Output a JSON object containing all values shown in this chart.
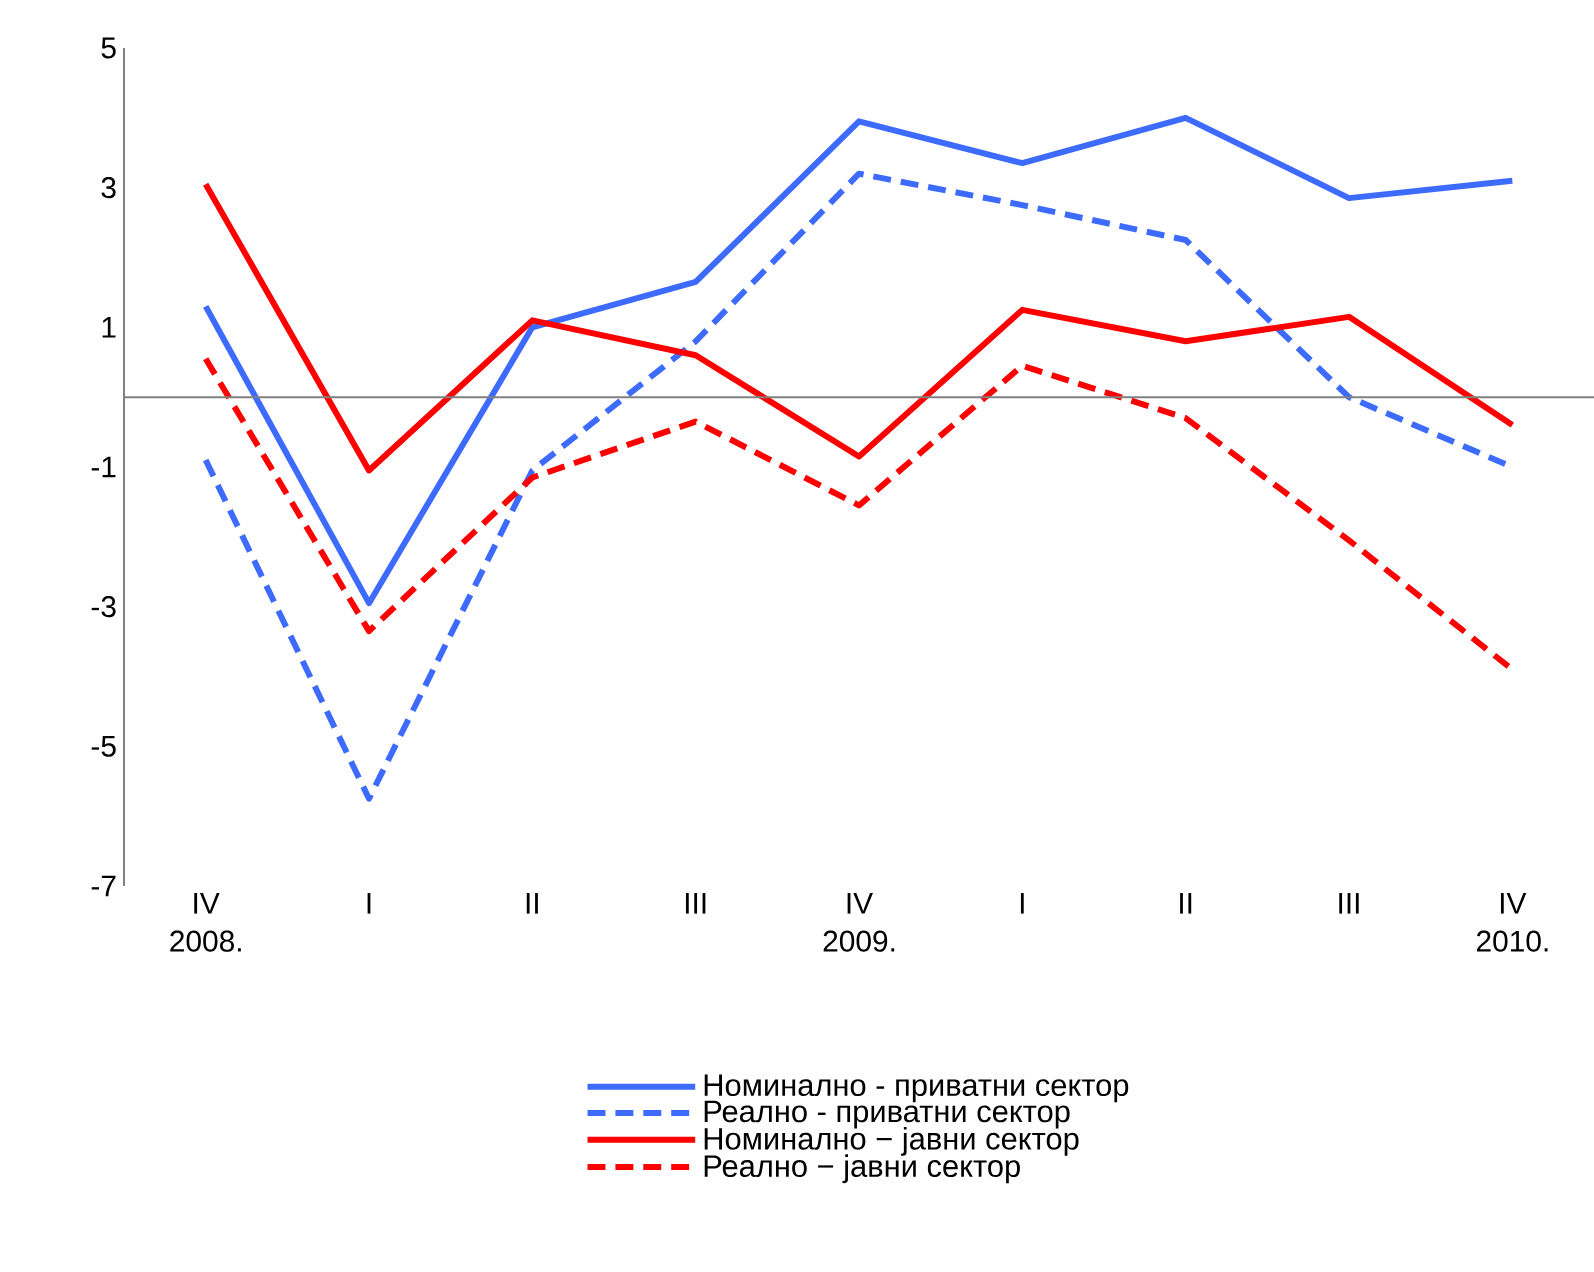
{
  "chart_data": {
    "type": "line",
    "categories": [
      "IV 2008.",
      "I",
      "II",
      "III",
      "IV 2009.",
      "I",
      "II",
      "III",
      "IV 2010."
    ],
    "series": [
      {
        "name": "Номинално - приватни сектор",
        "color": "#3d6bff",
        "line_style": "solid",
        "values": [
          1.3,
          -2.95,
          1.0,
          1.65,
          3.95,
          3.35,
          4.0,
          2.85,
          3.1
        ]
      },
      {
        "name": "Реално - приватни сектор",
        "color": "#3d6bff",
        "line_style": "dashed",
        "values": [
          -0.9,
          -5.75,
          -1.05,
          0.8,
          3.2,
          2.75,
          2.25,
          0.0,
          -1.0
        ]
      },
      {
        "name": "Номинално − јавни сектор",
        "color": "#ff0000",
        "line_style": "solid",
        "values": [
          3.05,
          -1.05,
          1.1,
          0.6,
          -0.85,
          1.25,
          0.8,
          1.15,
          -0.4
        ]
      },
      {
        "name": "Реално − јавни сектор",
        "color": "#ff0000",
        "line_style": "dashed",
        "values": [
          0.55,
          -3.35,
          -1.15,
          -0.35,
          -1.55,
          0.45,
          -0.3,
          -2.05,
          -3.9
        ]
      }
    ],
    "ylim": [
      -7,
      5
    ],
    "yticks": [
      -7,
      -5,
      -3,
      -1,
      1,
      3,
      5
    ],
    "grid": false,
    "legend": "bottom"
  }
}
